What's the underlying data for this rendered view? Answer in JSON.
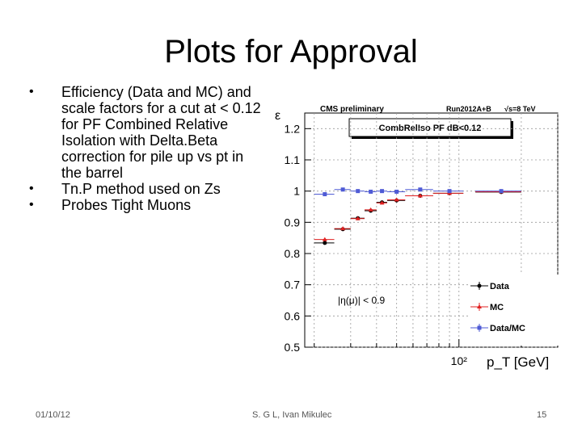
{
  "slide": {
    "title": "Plots for Approval",
    "bullets": [
      "Efficiency (Data and MC) and scale factors for a cut at < 0.12 for PF Combined Relative Isolation with Delta.Beta correction for pile up vs pt in the barrel",
      "Tn.P method used on Zs",
      "Probes Tight Muons"
    ],
    "footer": {
      "date": "01/10/12",
      "author": "S. G L, Ivan Mikulec",
      "page": "15"
    }
  },
  "plot_text": {
    "header_left": "CMS preliminary",
    "header_right": "Run2012A+B",
    "header_energy": "√s=8 TeV",
    "selection_box": "CombRelIso PF dB<0.12",
    "eta_cut": "|η(μ)| < 0.9"
  },
  "chart_data": {
    "type": "scatter",
    "title": "",
    "xlabel": "p_T [GeV]",
    "ylabel": "ε",
    "xscale": "log",
    "xtick_labels": [
      "10²"
    ],
    "yticks": [
      0.5,
      0.6,
      0.7,
      0.8,
      0.9,
      1.0,
      1.1,
      1.2
    ],
    "ylim": [
      0.5,
      1.25
    ],
    "grid": true,
    "legend_position": "bottom-right",
    "series": [
      {
        "name": "Data",
        "color": "#000000",
        "marker": "circle",
        "x": [
          22.5,
          27.5,
          32.5,
          37.5,
          42.5,
          50,
          65,
          90,
          160
        ],
        "y": [
          0.834,
          0.878,
          0.913,
          0.937,
          0.964,
          0.97,
          0.985,
          0.993,
          0.997
        ]
      },
      {
        "name": "MC",
        "color": "#e02020",
        "marker": "triangle",
        "x": [
          22.5,
          27.5,
          32.5,
          37.5,
          42.5,
          50,
          65,
          90,
          160
        ],
        "y": [
          0.845,
          0.88,
          0.912,
          0.94,
          0.962,
          0.972,
          0.985,
          0.993,
          0.998
        ]
      },
      {
        "name": "Data/MC",
        "color": "#4f5bd5",
        "marker": "square",
        "x": [
          22.5,
          27.5,
          32.5,
          37.5,
          42.5,
          50,
          65,
          90,
          160
        ],
        "y": [
          0.99,
          1.005,
          1.0,
          0.998,
          1.0,
          0.998,
          1.005,
          1.0,
          1.0
        ]
      }
    ]
  }
}
